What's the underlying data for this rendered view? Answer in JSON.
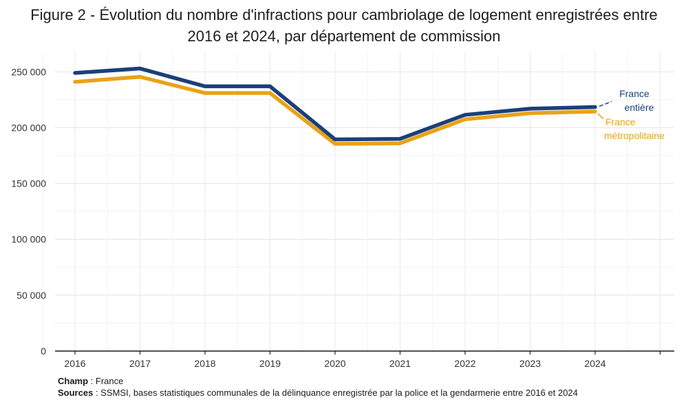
{
  "title": {
    "line1": "Figure 2 - Évolution du nombre d'infractions pour cambriolage de logement enregistrées entre",
    "line2": "2016 et 2024, par département de commission"
  },
  "footnotes": {
    "champ_label": "Champ",
    "champ_text": " : France",
    "sources_label": "Sources",
    "sources_text": " : SSMSI, bases statistiques communales de la délinquance enregistrée par la police et la gendarmerie entre 2016 et 2024"
  },
  "chart_data": {
    "type": "line",
    "title": "Figure 2 - Évolution du nombre d'infractions pour cambriolage de logement enregistrées entre 2016 et 2024, par département de commission",
    "xlabel": "",
    "ylabel": "",
    "x": [
      "2016",
      "2017",
      "2018",
      "2019",
      "2020",
      "2021",
      "2022",
      "2023",
      "2024"
    ],
    "ylim": [
      0,
      265000
    ],
    "yticks": [
      0,
      50000,
      100000,
      150000,
      200000,
      250000
    ],
    "ytick_labels": [
      "0",
      "50 000",
      "100 000",
      "150 000",
      "200 000",
      "250 000"
    ],
    "grid": true,
    "series": [
      {
        "name": "France entière",
        "label_lines": [
          "France",
          "entière"
        ],
        "color": "#1b3f7a",
        "values": [
          249000,
          253000,
          237000,
          237000,
          189500,
          190000,
          211500,
          217000,
          218500
        ]
      },
      {
        "name": "France métropolitaine",
        "label_lines": [
          "France",
          "métropolitaine"
        ],
        "color": "#e8a317",
        "values": [
          241000,
          245500,
          231000,
          231000,
          185500,
          186000,
          207500,
          213000,
          214500
        ]
      }
    ]
  }
}
